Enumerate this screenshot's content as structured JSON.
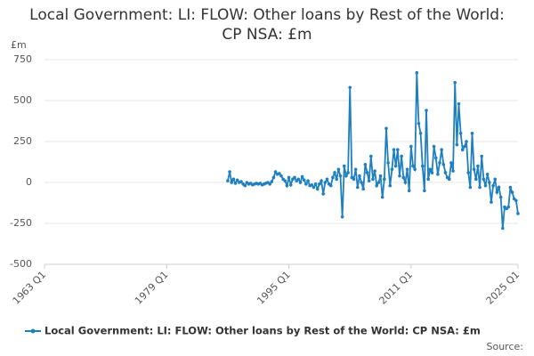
{
  "chart_data": {
    "type": "line",
    "title": "Local Government: LI: FLOW: Other loans by Rest of the World: CP NSA: £m",
    "y_label": "£m",
    "source": "Source:",
    "xlim": [
      "1963 Q1",
      "2025 Q1"
    ],
    "xticks": [
      "1963 Q1",
      "1979 Q1",
      "1995 Q1",
      "2011 Q1",
      "2025 Q1"
    ],
    "ylim": [
      -500,
      750
    ],
    "yticks": [
      750,
      500,
      250,
      0,
      -250,
      -500
    ],
    "grid": true,
    "legend": "bottom",
    "x": [
      "1987 Q1",
      "1987 Q2",
      "1987 Q3",
      "1987 Q4",
      "1988 Q1",
      "1988 Q2",
      "1988 Q3",
      "1988 Q4",
      "1989 Q1",
      "1989 Q2",
      "1989 Q3",
      "1989 Q4",
      "1990 Q1",
      "1990 Q2",
      "1990 Q3",
      "1990 Q4",
      "1991 Q1",
      "1991 Q2",
      "1991 Q3",
      "1991 Q4",
      "1992 Q1",
      "1992 Q2",
      "1992 Q3",
      "1992 Q4",
      "1993 Q1",
      "1993 Q2",
      "1993 Q3",
      "1993 Q4",
      "1994 Q1",
      "1994 Q2",
      "1994 Q3",
      "1994 Q4",
      "1995 Q1",
      "1995 Q2",
      "1995 Q3",
      "1995 Q4",
      "1996 Q1",
      "1996 Q2",
      "1996 Q3",
      "1996 Q4",
      "1997 Q1",
      "1997 Q2",
      "1997 Q3",
      "1997 Q4",
      "1998 Q1",
      "1998 Q2",
      "1998 Q3",
      "1998 Q4",
      "1999 Q1",
      "1999 Q2",
      "1999 Q3",
      "1999 Q4",
      "2000 Q1",
      "2000 Q2",
      "2000 Q3",
      "2000 Q4",
      "2001 Q1",
      "2001 Q2",
      "2001 Q3",
      "2001 Q4",
      "2002 Q1",
      "2002 Q2",
      "2002 Q3",
      "2002 Q4",
      "2003 Q1",
      "2003 Q2",
      "2003 Q3",
      "2003 Q4",
      "2004 Q1",
      "2004 Q2",
      "2004 Q3",
      "2004 Q4",
      "2005 Q1",
      "2005 Q2",
      "2005 Q3",
      "2005 Q4",
      "2006 Q1",
      "2006 Q2",
      "2006 Q3",
      "2006 Q4",
      "2007 Q1",
      "2007 Q2",
      "2007 Q3",
      "2007 Q4",
      "2008 Q1",
      "2008 Q2",
      "2008 Q3",
      "2008 Q4",
      "2009 Q1",
      "2009 Q2",
      "2009 Q3",
      "2009 Q4",
      "2010 Q1",
      "2010 Q2",
      "2010 Q3",
      "2010 Q4",
      "2011 Q1",
      "2011 Q2",
      "2011 Q3",
      "2011 Q4",
      "2012 Q1",
      "2012 Q2",
      "2012 Q3",
      "2012 Q4",
      "2013 Q1",
      "2013 Q2",
      "2013 Q3",
      "2013 Q4",
      "2014 Q1",
      "2014 Q2",
      "2014 Q3",
      "2014 Q4",
      "2015 Q1",
      "2015 Q2",
      "2015 Q3",
      "2015 Q4",
      "2016 Q1",
      "2016 Q2",
      "2016 Q3",
      "2016 Q4",
      "2017 Q1",
      "2017 Q2",
      "2017 Q3",
      "2017 Q4",
      "2018 Q1",
      "2018 Q2",
      "2018 Q3",
      "2018 Q4",
      "2019 Q1",
      "2019 Q2",
      "2019 Q3",
      "2019 Q4",
      "2020 Q1",
      "2020 Q2",
      "2020 Q3",
      "2020 Q4",
      "2021 Q1",
      "2021 Q2",
      "2021 Q3",
      "2021 Q4",
      "2022 Q1",
      "2022 Q2",
      "2022 Q3",
      "2022 Q4",
      "2023 Q1",
      "2023 Q2",
      "2023 Q3",
      "2023 Q4",
      "2024 Q1",
      "2024 Q2",
      "2024 Q3",
      "2024 Q4",
      "2025 Q1"
    ],
    "series": [
      {
        "name": "Local Government: LI: FLOW: Other loans by Rest of the World: CP NSA: £m",
        "color": "#1f7fbf",
        "values": [
          10,
          65,
          0,
          20,
          -5,
          15,
          0,
          5,
          -10,
          -20,
          0,
          -10,
          -5,
          -15,
          -10,
          -5,
          -10,
          -5,
          -15,
          -10,
          -5,
          0,
          -10,
          5,
          30,
          65,
          50,
          55,
          40,
          20,
          10,
          -20,
          30,
          -15,
          20,
          30,
          10,
          20,
          0,
          35,
          15,
          -10,
          10,
          -20,
          -15,
          -30,
          -10,
          -40,
          -10,
          10,
          -70,
          0,
          20,
          -10,
          -20,
          30,
          60,
          20,
          80,
          40,
          -210,
          100,
          40,
          60,
          580,
          30,
          20,
          80,
          -30,
          40,
          0,
          -40,
          110,
          60,
          10,
          160,
          20,
          70,
          -20,
          0,
          40,
          -90,
          20,
          330,
          120,
          -20,
          80,
          200,
          100,
          200,
          40,
          160,
          30,
          0,
          80,
          -50,
          220,
          100,
          80,
          670,
          360,
          300,
          100,
          -50,
          440,
          20,
          80,
          60,
          220,
          150,
          50,
          120,
          200,
          110,
          60,
          30,
          20,
          120,
          70,
          610,
          230,
          480,
          300,
          200,
          220,
          250,
          60,
          -30,
          300,
          80,
          20,
          100,
          -30,
          160,
          20,
          -20,
          50,
          0,
          -120,
          -20,
          20,
          -60,
          -30,
          -90,
          -280,
          -150,
          -160,
          -150,
          -30,
          -60,
          -100,
          -110,
          -190
        ]
      }
    ]
  }
}
